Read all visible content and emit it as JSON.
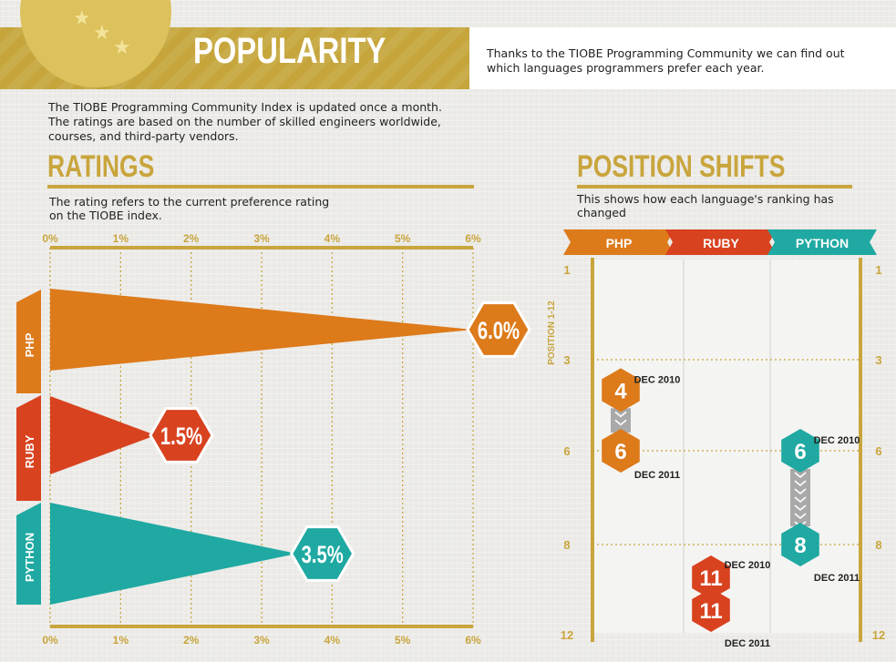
{
  "banner": {
    "title": "POPULARITY",
    "note": "Thanks to the TIOBE Programming Community we can find out which languages programmers prefer each year."
  },
  "intro": "The TIOBE Programming Community Index is updated once a month. The ratings are based on the number of skilled engineers worldwide, courses, and third-party vendors.",
  "ratings": {
    "title": "RATINGS",
    "subtitle": "The rating refers to the current preference rating on the TIOBE index."
  },
  "position_shifts": {
    "title": "POSITION SHIFTS",
    "subtitle": "This shows how each language's ranking has changed"
  },
  "colors": {
    "gold": "#c9a53d",
    "php": "#dd7a1a",
    "ruby": "#d8421f",
    "python": "#1fa9a2",
    "banner": "#c6a63c"
  },
  "chart_data": [
    {
      "type": "bar",
      "orientation": "horizontal",
      "categories": [
        "PHP",
        "RUBY",
        "PYTHON"
      ],
      "values": [
        6.0,
        1.5,
        3.5
      ],
      "value_labels": [
        "6.0%",
        "1.5%",
        "3.5%"
      ],
      "xlim": [
        0,
        6
      ],
      "xticks": [
        "0%",
        "1%",
        "2%",
        "3%",
        "4%",
        "5%",
        "6%"
      ],
      "grid": true
    },
    {
      "type": "scatter",
      "ylabel": "POSITION 1-12",
      "categories": [
        "PHP",
        "RUBY",
        "PYTHON"
      ],
      "yticks": [
        "1",
        "3",
        "6",
        "8",
        "12"
      ],
      "ylim": [
        1,
        12
      ],
      "series": [
        {
          "name": "PHP",
          "points": [
            {
              "label": "DEC 2010",
              "value": 4
            },
            {
              "label": "DEC 2011",
              "value": 6
            }
          ]
        },
        {
          "name": "RUBY",
          "points": [
            {
              "label": "DEC 2010",
              "value": 11
            },
            {
              "label": "DEC 2011",
              "value": 11
            }
          ]
        },
        {
          "name": "PYTHON",
          "points": [
            {
              "label": "DEC 2010",
              "value": 6
            },
            {
              "label": "DEC 2011",
              "value": 8
            }
          ]
        }
      ]
    }
  ]
}
